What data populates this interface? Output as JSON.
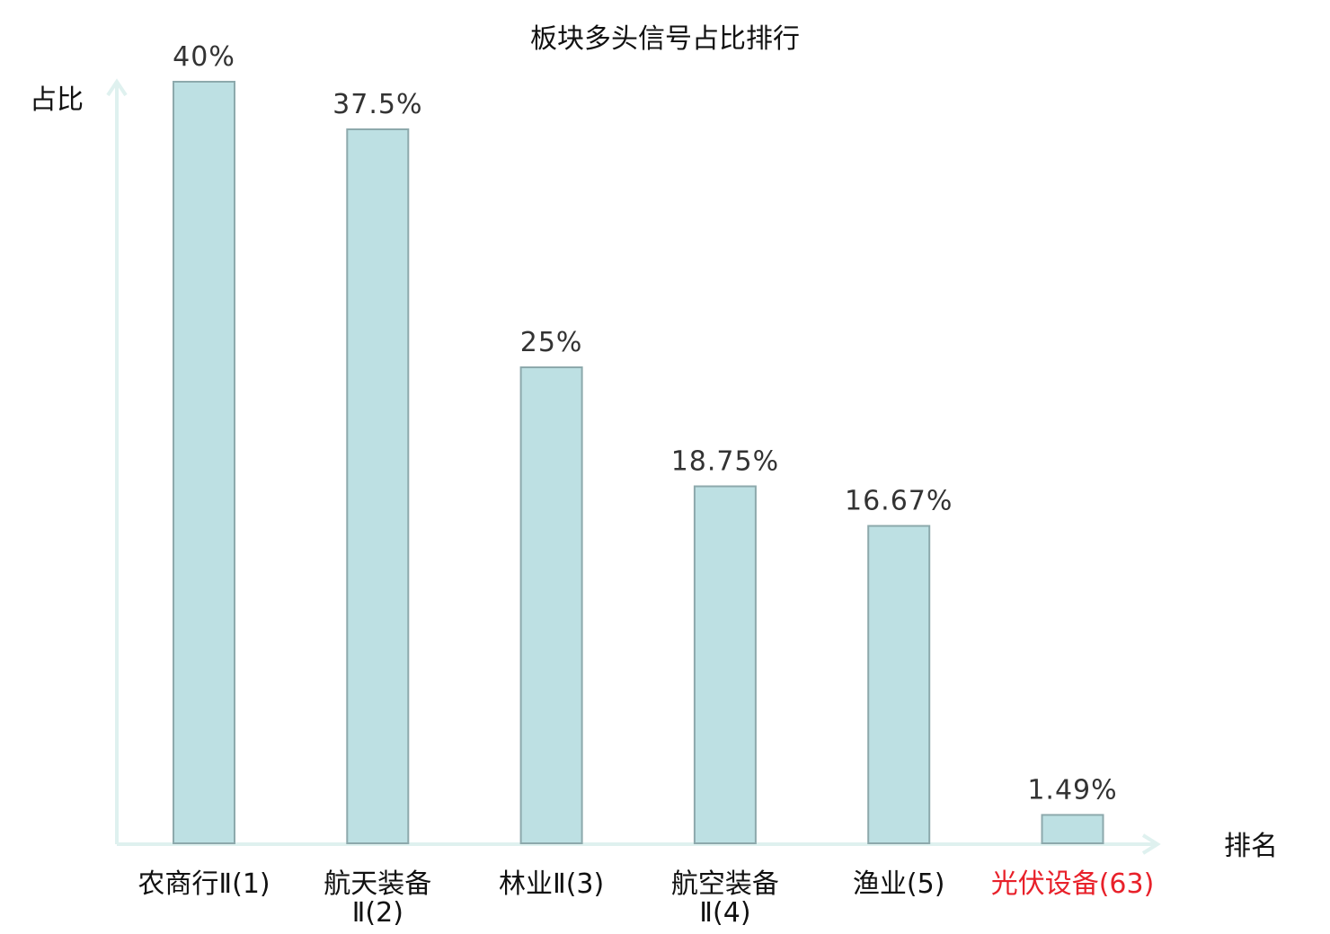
{
  "chart_data": {
    "type": "bar",
    "title": "板块多头信号占比排行",
    "ylabel": "占比",
    "xlabel": "排名",
    "ylim": [
      0,
      40
    ],
    "categories": [
      {
        "name": "农商行Ⅱ",
        "rank": "(1)",
        "lines": [
          "农商行Ⅱ(1)"
        ],
        "highlight": false
      },
      {
        "name": "航天装备Ⅱ",
        "rank": "(2)",
        "lines": [
          "航天装备",
          "Ⅱ(2)"
        ],
        "highlight": false
      },
      {
        "name": "林业Ⅱ",
        "rank": "(3)",
        "lines": [
          "林业Ⅱ(3)"
        ],
        "highlight": false
      },
      {
        "name": "航空装备Ⅱ",
        "rank": "(4)",
        "lines": [
          "航空装备",
          "Ⅱ(4)"
        ],
        "highlight": false
      },
      {
        "name": "渔业",
        "rank": "(5)",
        "lines": [
          "渔业(5)"
        ],
        "highlight": false
      },
      {
        "name": "光伏设备",
        "rank": "(63)",
        "lines": [
          "光伏设备(63)"
        ],
        "highlight": true
      }
    ],
    "values": [
      40,
      37.5,
      25,
      18.75,
      16.67,
      1.49
    ],
    "value_labels": [
      "40%",
      "37.5%",
      "25%",
      "18.75%",
      "16.67%",
      "1.49%"
    ],
    "grid": false,
    "legend": "none"
  },
  "colors": {
    "bar_fill": "#bde0e3",
    "bar_stroke": "#8da9ac",
    "axis": "#dff1ef",
    "text": "#111111",
    "value_text": "#333333",
    "highlight": "#e8212a"
  }
}
